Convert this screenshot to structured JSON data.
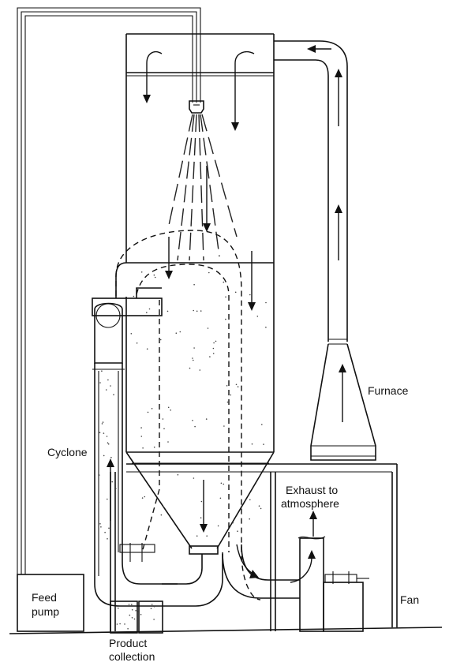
{
  "labels": {
    "furnace": "Furnace",
    "cyclone": "Cyclone",
    "exhaust_line1": "Exhaust to",
    "exhaust_line2": "atmosphere",
    "feed_line1": "Feed",
    "feed_line2": "pump",
    "fan": "Fan",
    "product_line1": "Product",
    "product_line2": "collection"
  },
  "colors": {
    "line": "#111111",
    "background": "#ffffff",
    "particles": "#444444"
  }
}
